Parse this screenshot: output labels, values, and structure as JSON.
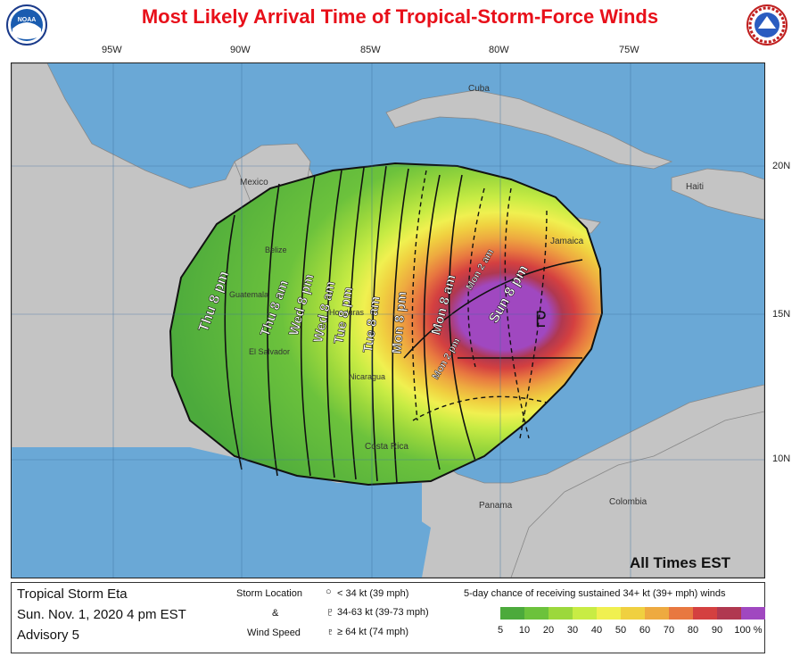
{
  "title": "Most Likely Arrival Time of Tropical-Storm-Force Winds",
  "logos": {
    "left": "NOAA",
    "right": "NATIONAL WEATHER SERVICE"
  },
  "longitudes": [
    "95W",
    "90W",
    "85W",
    "80W",
    "75W"
  ],
  "latitudes": [
    "20N",
    "15N",
    "10N"
  ],
  "places": [
    "Cuba",
    "Mexico",
    "Haiti",
    "Jamaica",
    "Belize",
    "Guatemala",
    "El Salvador",
    "Honduras",
    "Nicaragua",
    "Costa Rica",
    "Panama",
    "Colombia"
  ],
  "arrival_labels": [
    "Thu 8 pm",
    "Thu 8 am",
    "Wed 8 pm",
    "Wed 8 am",
    "Tue 8 pm",
    "Tue 8 am",
    "Mon 8 pm",
    "Mon 8 am",
    "Mon 2 pm",
    "Mon 2 am",
    "Sun 8 pm"
  ],
  "all_times": "All Times EST",
  "storm": {
    "name": "Tropical Storm Eta",
    "date": "Sun. Nov. 1, 2020  4 pm EST",
    "advisory": "Advisory 5"
  },
  "storm_legend": {
    "title": "Storm Location",
    "amp": "&",
    "subtitle": "Wind Speed",
    "items": [
      "< 34 kt (39 mph)",
      "34-63 kt (39-73 mph)",
      "≥ 64 kt (74 mph)"
    ]
  },
  "scale": {
    "title": "5-day chance of receiving sustained 34+ kt (39+ mph) winds",
    "ticks": [
      "5",
      "10",
      "20",
      "30",
      "40",
      "50",
      "60",
      "70",
      "80",
      "90",
      "100 %"
    ],
    "colors": [
      "#4caa3c",
      "#6cc23c",
      "#9cd83c",
      "#c8ec44",
      "#f0f050",
      "#f0d040",
      "#eeaa40",
      "#e87840",
      "#d44040",
      "#b03850",
      "#a048c0"
    ]
  }
}
